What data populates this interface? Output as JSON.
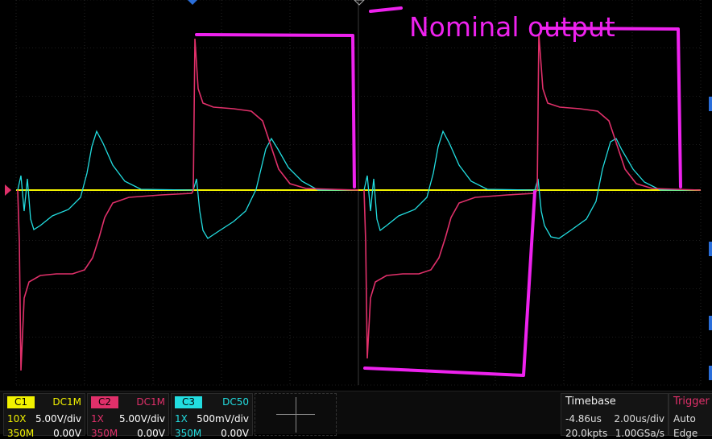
{
  "annotation": {
    "text": "Nominal output"
  },
  "channels": [
    {
      "tag": "C1",
      "coupling": "DC1M",
      "probe": "10X",
      "scale": "5.00V/div",
      "bandwidth": "350M",
      "offset": "0.00V",
      "color": "#f2f200"
    },
    {
      "tag": "C2",
      "coupling": "DC1M",
      "probe": "1X",
      "scale": "5.00V/div",
      "bandwidth": "350M",
      "offset": "0.00V",
      "color": "#e0306a"
    },
    {
      "tag": "C3",
      "coupling": "DC50",
      "probe": "1X",
      "scale": "500mV/div",
      "bandwidth": "350M",
      "offset": "0.00V",
      "color": "#22dde0"
    }
  ],
  "timebase": {
    "header": "Timebase",
    "delay": "-4.86us",
    "scale": "2.00us/div",
    "points": "20.0kpts",
    "sample_rate": "1.00GSa/s"
  },
  "trigger": {
    "header": "Trigger",
    "mode": "Auto",
    "type": "Edge"
  },
  "colors": {
    "annotation": "#ee22ee",
    "grid": "#3a3a3a"
  }
}
